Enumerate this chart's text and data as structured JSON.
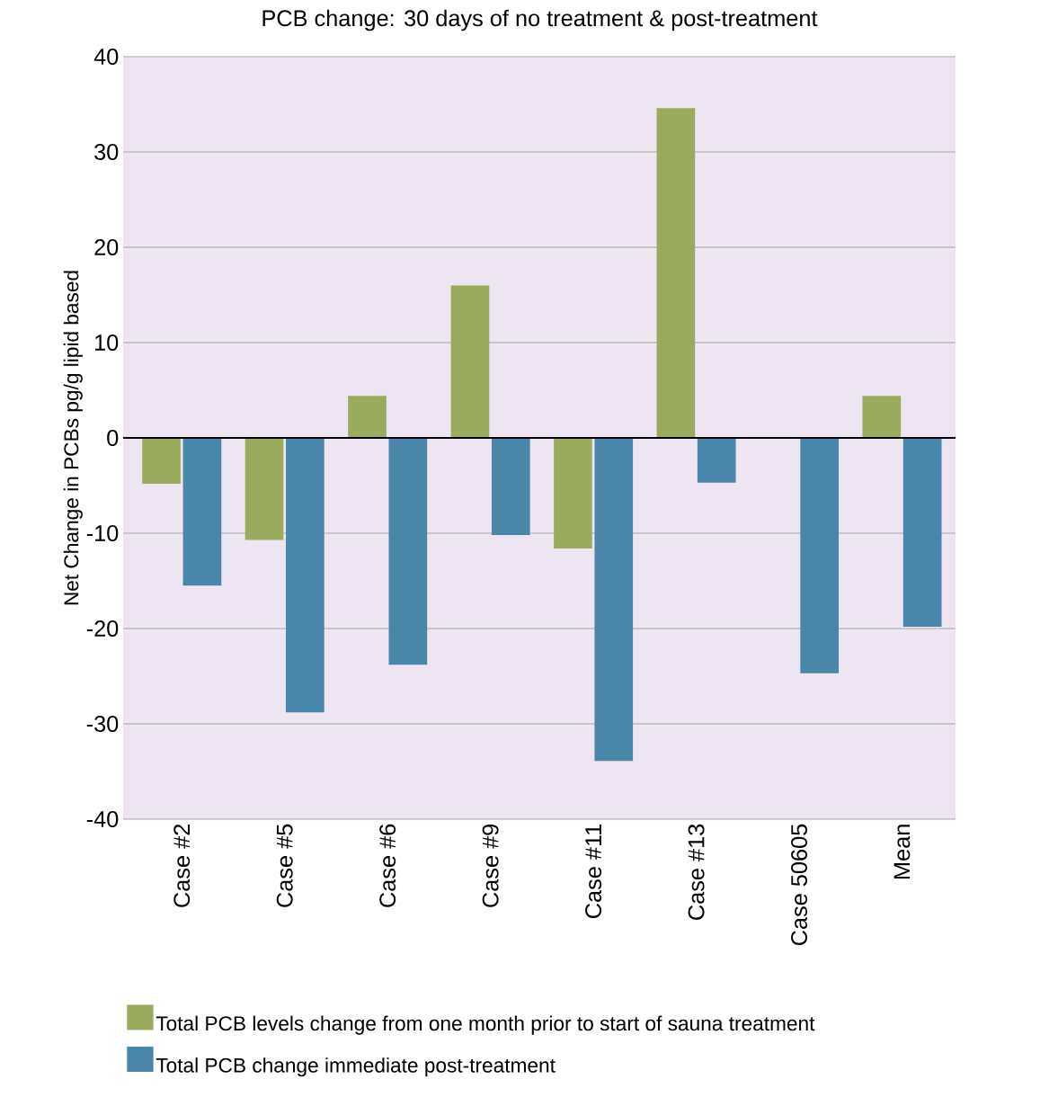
{
  "chart_data": {
    "type": "bar",
    "title": "PCB change: 30 days of no treatment & post-treatment",
    "ylabel": "Net Change in PCBs pg/g lipid based",
    "categories": [
      "Case #2",
      "Case #5",
      "Case #6",
      "Case #9",
      "Case #11",
      "Case #13",
      "Case 50605",
      "Mean"
    ],
    "series": [
      {
        "name": "Total PCB levels change from one month prior to start of sauna treatment",
        "color": "#9aab5e",
        "values": [
          -4.8,
          -10.7,
          4.4,
          16,
          -11.6,
          34.6,
          null,
          4.4
        ]
      },
      {
        "name": "Total PCB change immediate post-treatment",
        "color": "#4a86a8",
        "values": [
          -15.5,
          -28.8,
          -23.8,
          -10.2,
          -33.9,
          -4.7,
          -24.7,
          -19.8
        ]
      }
    ],
    "ylim": [
      -40,
      40
    ],
    "yticks": [
      -40,
      -30,
      -20,
      -10,
      0,
      10,
      20,
      30,
      40
    ],
    "grid": "y",
    "legend": "bottom",
    "ref_lines": [
      {
        "axis": "y",
        "value": 0,
        "color": "#000000"
      }
    ]
  }
}
